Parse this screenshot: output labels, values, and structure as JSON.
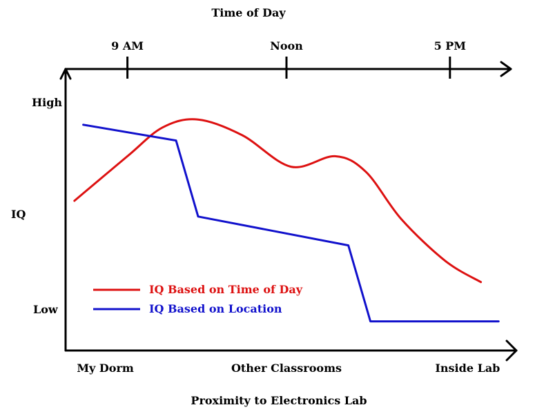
{
  "chart_data": {
    "type": "line",
    "top_axis": {
      "label": "Time of Day",
      "ticks": [
        {
          "label": "9 AM",
          "pos": 0.14
        },
        {
          "label": "Noon",
          "pos": 0.5
        },
        {
          "label": "5 PM",
          "pos": 0.87
        }
      ]
    },
    "bottom_axis": {
      "label": "Proximity to Electronics Lab",
      "categories": [
        {
          "label": "My Dorm",
          "pos": 0.09
        },
        {
          "label": "Other Classrooms",
          "pos": 0.5
        },
        {
          "label": "Inside Lab",
          "pos": 0.91
        }
      ]
    },
    "y_axis": {
      "label": "IQ",
      "high_label": "High",
      "low_label": "Low"
    },
    "xlim": [
      0,
      1
    ],
    "ylim": [
      0,
      1
    ],
    "series": [
      {
        "name": "IQ Based on Time of Day",
        "color": "#dd1111",
        "curve": "smooth",
        "points": [
          [
            0.02,
            0.55
          ],
          [
            0.14,
            0.72
          ],
          [
            0.22,
            0.83
          ],
          [
            0.3,
            0.86
          ],
          [
            0.4,
            0.8
          ],
          [
            0.51,
            0.68
          ],
          [
            0.61,
            0.72
          ],
          [
            0.68,
            0.66
          ],
          [
            0.76,
            0.48
          ],
          [
            0.86,
            0.32
          ],
          [
            0.94,
            0.24
          ]
        ]
      },
      {
        "name": "IQ Based on Location",
        "color": "#1111cc",
        "curve": "straight",
        "points": [
          [
            0.04,
            0.84
          ],
          [
            0.25,
            0.78
          ],
          [
            0.3,
            0.49
          ],
          [
            0.64,
            0.38
          ],
          [
            0.69,
            0.09
          ],
          [
            0.98,
            0.09
          ]
        ]
      }
    ],
    "grid": false,
    "legend_position": "bottom-left"
  }
}
